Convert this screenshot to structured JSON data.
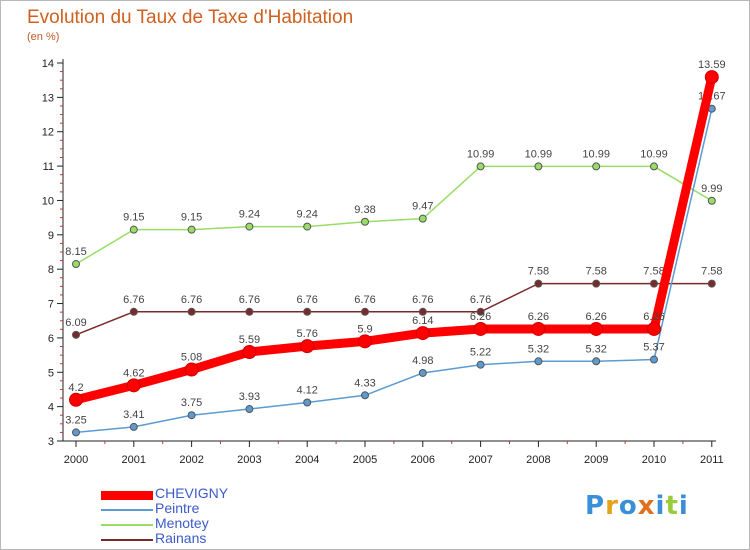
{
  "title": "Evolution du Taux de Taxe d'Habitation",
  "unit_label": "(en %)",
  "logo": {
    "text": "Proxiti",
    "letters": [
      {
        "ch": "P",
        "color": "#3a8fd8"
      },
      {
        "ch": "r",
        "color": "#e6a21a"
      },
      {
        "ch": "o",
        "color": "#3a8fd8"
      },
      {
        "ch": "x",
        "color": "#e07020"
      },
      {
        "ch": "i",
        "color": "#3a8fd8"
      },
      {
        "ch": "t",
        "color": "#9acb3c"
      },
      {
        "ch": "i",
        "color": "#3a8fd8"
      }
    ]
  },
  "chart_data": {
    "type": "line",
    "x": [
      "2000",
      "2001",
      "2002",
      "2003",
      "2004",
      "2005",
      "2006",
      "2007",
      "2008",
      "2009",
      "2010",
      "2011"
    ],
    "ylim": [
      3,
      14
    ],
    "yticks": [
      "3",
      "4",
      "5",
      "6",
      "7",
      "8",
      "9",
      "10",
      "11",
      "12",
      "13",
      "14"
    ],
    "grid": false,
    "legend_position": "bottom-left",
    "series": [
      {
        "name": "Rainans",
        "color": "#7a2a2a",
        "values": [
          6.09,
          6.76,
          6.76,
          6.76,
          6.76,
          6.76,
          6.76,
          6.76,
          7.58,
          7.58,
          7.58,
          7.58
        ],
        "labels": [
          "6.09",
          "6.76",
          "6.76",
          "6.76",
          "6.76",
          "6.76",
          "6.76",
          "6.76",
          "7.58",
          "7.58",
          "7.58",
          "7.58"
        ]
      },
      {
        "name": "Menotey",
        "color": "#99dd66",
        "values": [
          8.15,
          9.15,
          9.15,
          9.24,
          9.24,
          9.38,
          9.47,
          10.99,
          10.99,
          10.99,
          10.99,
          9.99
        ],
        "labels": [
          "8.15",
          "9.15",
          "9.15",
          "9.24",
          "9.24",
          "9.38",
          "9.47",
          "10.99",
          "10.99",
          "10.99",
          "10.99",
          "9.99"
        ]
      },
      {
        "name": "Peintre",
        "color": "#5c9bd0",
        "values": [
          3.25,
          3.41,
          3.75,
          3.93,
          4.12,
          4.33,
          4.98,
          5.22,
          5.32,
          5.32,
          5.37,
          12.67
        ],
        "labels": [
          "3.25",
          "3.41",
          "3.75",
          "3.93",
          "4.12",
          "4.33",
          "4.98",
          "5.22",
          "5.32",
          "5.32",
          "5.37",
          "12.67"
        ]
      },
      {
        "name": "CHEVIGNY",
        "color": "#ff0000",
        "values": [
          4.2,
          4.62,
          5.08,
          5.59,
          5.76,
          5.9,
          6.14,
          6.26,
          6.26,
          6.26,
          6.26,
          13.59
        ],
        "labels": [
          "4.2",
          "4.62",
          "5.08",
          "5.59",
          "5.76",
          "5.9",
          "6.14",
          "6.26",
          "6.26",
          "6.26",
          "6.26",
          "13.59"
        ]
      }
    ],
    "legend": [
      {
        "name": "CHEVIGNY",
        "color": "#ff0000",
        "text_color": "#3d5bc8"
      },
      {
        "name": "Peintre",
        "color": "#5c9bd0",
        "text_color": "#3d5bc8"
      },
      {
        "name": "Menotey",
        "color": "#99dd66",
        "text_color": "#3d5bc8"
      },
      {
        "name": "Rainans",
        "color": "#7a2a2a",
        "text_color": "#3d5bc8"
      }
    ]
  }
}
